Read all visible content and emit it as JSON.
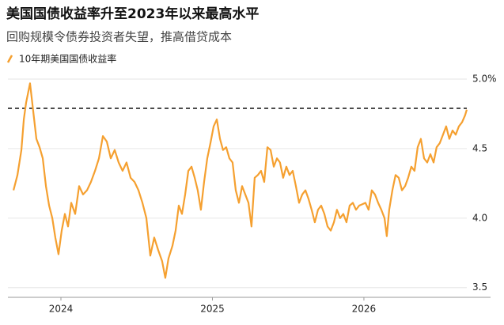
{
  "chart_data": {
    "type": "line",
    "title": "美国国债收益率升至2023年以来最高水平",
    "subtitle": "回购规模令债券投资者失望，推高借贷成本",
    "x": [
      2023.687,
      2023.713,
      2023.739,
      2023.755,
      2023.77,
      2023.796,
      2023.817,
      2023.838,
      2023.859,
      2023.88,
      2023.901,
      2023.922,
      2023.943,
      2023.963,
      2023.984,
      2024.005,
      2024.026,
      2024.047,
      2024.068,
      2024.094,
      2024.12,
      2024.146,
      2024.172,
      2024.198,
      2024.225,
      2024.251,
      2024.277,
      2024.303,
      2024.329,
      2024.355,
      2024.381,
      2024.407,
      2024.433,
      2024.46,
      2024.486,
      2024.512,
      2024.538,
      2024.564,
      2024.59,
      2024.616,
      2024.642,
      2024.668,
      2024.689,
      2024.71,
      2024.736,
      2024.757,
      2024.778,
      2024.799,
      2024.82,
      2024.841,
      2024.862,
      2024.883,
      2024.903,
      2024.924,
      2024.945,
      2024.966,
      2024.987,
      2025.008,
      2025.029,
      2025.05,
      2025.07,
      2025.091,
      2025.112,
      2025.133,
      2025.154,
      2025.175,
      2025.196,
      2025.217,
      2025.238,
      2025.258,
      2025.279,
      2025.3,
      2025.321,
      2025.342,
      2025.363,
      2025.384,
      2025.405,
      2025.426,
      2025.446,
      2025.467,
      2025.488,
      2025.509,
      2025.53,
      2025.551,
      2025.572,
      2025.593,
      2025.614,
      2025.634,
      2025.655,
      2025.676,
      2025.697,
      2025.718,
      2025.739,
      2025.76,
      2025.781,
      2025.802,
      2025.822,
      2025.843,
      2025.864,
      2025.885,
      2025.906,
      2025.927,
      2025.948,
      2025.969,
      2025.99,
      2026.01,
      2026.031,
      2026.052,
      2026.073,
      2026.094,
      2026.115,
      2026.136,
      2026.151,
      2026.167,
      2026.188,
      2026.209,
      2026.23,
      2026.251,
      2026.272,
      2026.292,
      2026.313,
      2026.334,
      2026.355,
      2026.376,
      2026.397,
      2026.418,
      2026.439,
      2026.46,
      2026.48,
      2026.501,
      2026.522,
      2026.543,
      2026.564,
      2026.585,
      2026.606,
      2026.627,
      2026.648,
      2026.668,
      2026.679
    ],
    "series": [
      {
        "name": "10年期美国国债收益率",
        "color": "#f5a030",
        "values": [
          4.2,
          4.31,
          4.49,
          4.71,
          4.83,
          4.97,
          4.77,
          4.57,
          4.51,
          4.43,
          4.23,
          4.09,
          4.0,
          3.86,
          3.74,
          3.91,
          4.03,
          3.94,
          4.11,
          4.03,
          4.23,
          4.17,
          4.2,
          4.26,
          4.34,
          4.43,
          4.59,
          4.55,
          4.43,
          4.49,
          4.4,
          4.34,
          4.4,
          4.29,
          4.26,
          4.2,
          4.11,
          4.0,
          3.73,
          3.86,
          3.77,
          3.69,
          3.57,
          3.71,
          3.8,
          3.91,
          4.09,
          4.03,
          4.17,
          4.34,
          4.37,
          4.29,
          4.2,
          4.06,
          4.26,
          4.43,
          4.54,
          4.66,
          4.71,
          4.57,
          4.49,
          4.51,
          4.43,
          4.4,
          4.2,
          4.11,
          4.23,
          4.17,
          4.11,
          3.94,
          4.29,
          4.31,
          4.34,
          4.26,
          4.51,
          4.49,
          4.37,
          4.43,
          4.4,
          4.29,
          4.37,
          4.31,
          4.34,
          4.23,
          4.11,
          4.17,
          4.2,
          4.14,
          4.06,
          3.97,
          4.06,
          4.09,
          4.03,
          3.94,
          3.91,
          3.97,
          4.06,
          4.0,
          4.03,
          3.97,
          4.09,
          4.11,
          4.06,
          4.09,
          4.1,
          4.11,
          4.06,
          4.2,
          4.17,
          4.11,
          4.06,
          4.0,
          3.87,
          4.06,
          4.2,
          4.31,
          4.29,
          4.2,
          4.23,
          4.29,
          4.37,
          4.34,
          4.51,
          4.57,
          4.43,
          4.4,
          4.46,
          4.4,
          4.51,
          4.54,
          4.6,
          4.66,
          4.57,
          4.63,
          4.6,
          4.66,
          4.69,
          4.74,
          4.78
        ]
      }
    ],
    "reference_line": 4.79,
    "xlim": [
      2023.65,
      2026.836
    ],
    "xticks": [
      2024,
      2025,
      2026
    ],
    "ylim": [
      3.43,
      5.06
    ],
    "yticks": [
      {
        "value": 5,
        "label": "5.0%"
      },
      4.5,
      {
        "value": 4,
        "label": "4.0"
      },
      3.5
    ],
    "grid": true
  }
}
